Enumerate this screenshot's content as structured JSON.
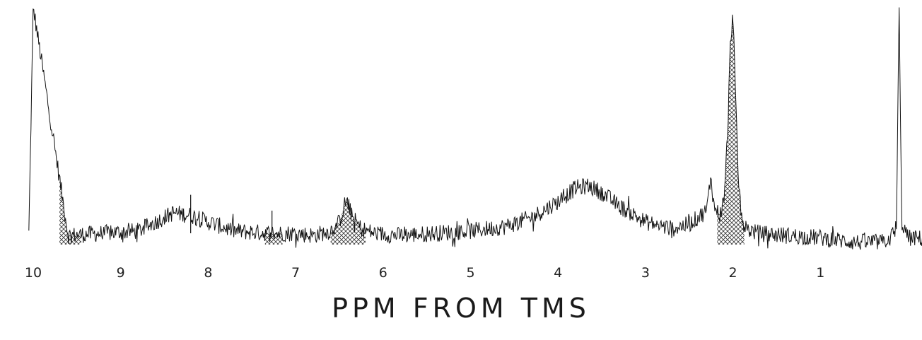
{
  "chart_data": {
    "type": "line",
    "title": "",
    "xlabel": "PPM FROM TMS",
    "ylabel": "",
    "xlim": [
      10.05,
      -0.45
    ],
    "x_reversed": true,
    "grid": false,
    "x_ticks": [
      10,
      9,
      8,
      7,
      6,
      5,
      4,
      3,
      2,
      1
    ],
    "tick_labels": [
      "10",
      "9",
      "8",
      "7",
      "6",
      "5",
      "4",
      "3",
      "2",
      "1"
    ],
    "series": [
      {
        "x": [
          10.05,
          10.0,
          9.6,
          9.2,
          8.8,
          8.6,
          8.4,
          8.2,
          8.0,
          7.7,
          7.3,
          7.0,
          6.8,
          6.6,
          6.5,
          6.42,
          6.35,
          6.25,
          6.1,
          5.8,
          5.4,
          5.0,
          4.6,
          4.3,
          4.0,
          3.8,
          3.65,
          3.5,
          3.3,
          3.0,
          2.7,
          2.5,
          2.3,
          2.25,
          2.22,
          2.15,
          2.1,
          2.06,
          2.03,
          2.0,
          1.97,
          1.94,
          1.9,
          1.85,
          1.7,
          1.4,
          1.0,
          0.6,
          0.3,
          0.2,
          0.13,
          0.1,
          0.07,
          0.0,
          -0.45
        ],
        "values": [
          0.0,
          1.0,
          -0.01,
          0.0,
          0.01,
          0.05,
          0.09,
          0.08,
          0.05,
          0.01,
          0.0,
          0.0,
          -0.01,
          0.01,
          0.05,
          0.15,
          0.07,
          0.02,
          0.0,
          -0.01,
          0.0,
          0.01,
          0.03,
          0.07,
          0.14,
          0.2,
          0.21,
          0.18,
          0.12,
          0.05,
          0.02,
          0.04,
          0.1,
          0.26,
          0.12,
          0.08,
          0.15,
          0.45,
          0.82,
          0.99,
          0.6,
          0.25,
          0.07,
          0.02,
          0.0,
          -0.01,
          -0.02,
          -0.04,
          -0.04,
          -0.02,
          0.02,
          1.0,
          0.05,
          -0.02,
          -0.03
        ]
      }
    ],
    "annotations": [
      {
        "type": "sharp_peak",
        "x": 8.2,
        "height": 0.17
      },
      {
        "type": "sharp_peak",
        "x": 7.27,
        "height": 0.1
      }
    ],
    "shaded_regions": [
      {
        "from": 9.7,
        "to": 9.45
      },
      {
        "from": 6.6,
        "to": 6.2
      },
      {
        "from": 2.18,
        "to": 1.87
      },
      {
        "from": 7.35,
        "to": 7.15
      }
    ]
  }
}
